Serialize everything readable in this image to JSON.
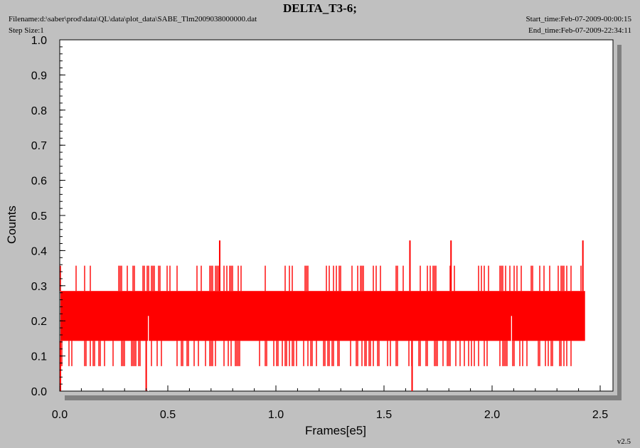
{
  "header": {
    "title": "DELTA_T3-6;",
    "filename": "Filename:d:\\saber\\prod\\data\\QL\\data\\plot_data\\SABE_Tlm2009038000000.dat",
    "step_size": "Step Size:1",
    "start_time": "Start_time:Feb-07-2009-00:00:15",
    "end_time": "End_time:Feb-07-2009-22:34:11"
  },
  "footer": {
    "version": "v2.5"
  },
  "style": {
    "plot_bg": "#ffffff",
    "page_bg": "#c0c0c0",
    "series_color": "#ff0000"
  },
  "chart_data": {
    "type": "line",
    "title": "DELTA_T3-6;",
    "xlabel": "Frames[e5]",
    "ylabel": "Counts",
    "xlim": [
      0.0,
      2.55
    ],
    "ylim": [
      0.0,
      1.0
    ],
    "x_ticks": [
      "0.0",
      "0.5",
      "1.0",
      "1.5",
      "2.0",
      "2.5"
    ],
    "y_ticks": [
      "0.0",
      "0.1",
      "0.2",
      "0.3",
      "0.4",
      "0.5",
      "0.6",
      "0.7",
      "0.8",
      "0.9",
      "1.0"
    ],
    "grid": false,
    "series": [
      {
        "color": "#ff0000",
        "x_range": [
          0.0,
          2.43
        ],
        "dense_band": [
          0.143,
          0.285
        ],
        "frequent_spikes": {
          "high": 0.357,
          "low": 0.071
        },
        "max_spikes": [
          {
            "x": 0.74,
            "y": 0.429
          },
          {
            "x": 1.62,
            "y": 0.429
          },
          {
            "x": 1.81,
            "y": 0.429
          },
          {
            "x": 2.42,
            "y": 0.429
          }
        ],
        "min_spikes": [
          {
            "x": 0.0,
            "y": 0.0
          },
          {
            "x": 0.4,
            "y": 0.0
          },
          {
            "x": 1.63,
            "y": 0.0
          }
        ],
        "gaps": [
          {
            "x": 0.41,
            "y_low": 0.0,
            "y_high": 0.214
          },
          {
            "x": 2.09,
            "y_low": 0.143,
            "y_high": 0.214
          }
        ]
      }
    ]
  }
}
